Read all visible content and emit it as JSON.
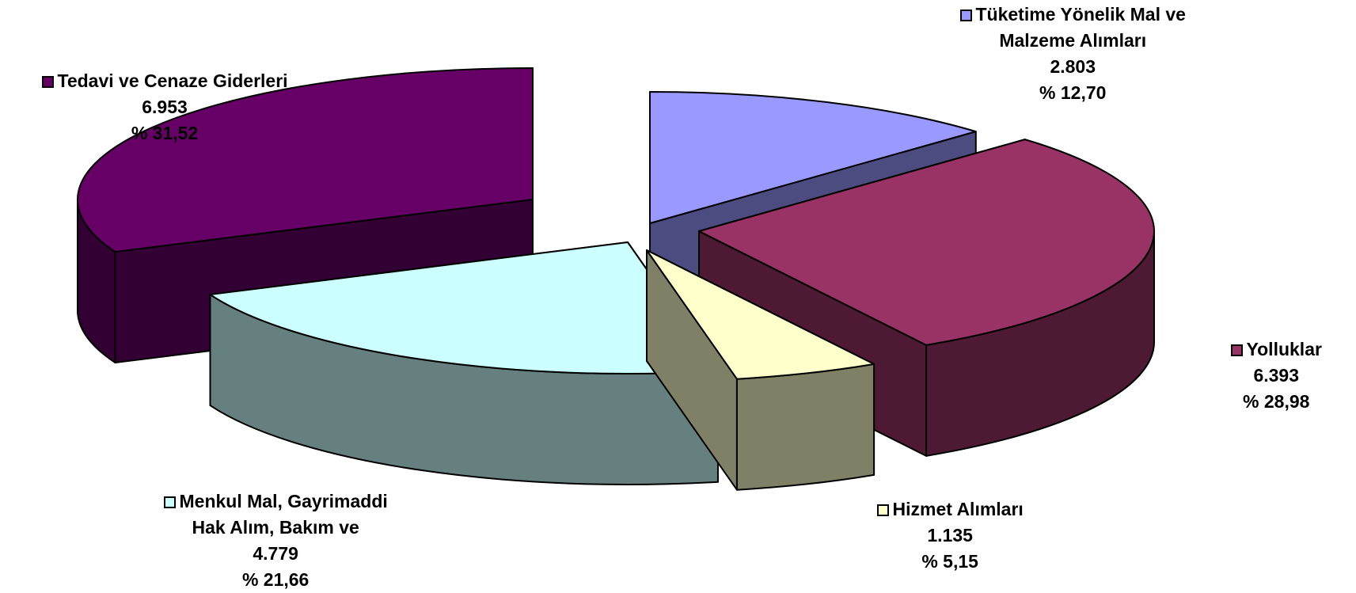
{
  "chart_data": {
    "type": "pie",
    "style": "3d-exploded",
    "slices": [
      {
        "key": "tuketim",
        "lines": [
          "Tüketime Yönelik Mal ve",
          "Malzeme Alımları"
        ],
        "value": 2803,
        "value_label": "2.803",
        "percent_label": "% 12,70",
        "color": "#9999FF",
        "side_color": "#4C4C80"
      },
      {
        "key": "yolluklar",
        "lines": [
          "Yolluklar"
        ],
        "value": 6393,
        "value_label": "6.393",
        "percent_label": "% 28,98",
        "color": "#993366",
        "side_color": "#4D1933"
      },
      {
        "key": "hizmet",
        "lines": [
          "Hizmet Alımları"
        ],
        "value": 1135,
        "value_label": "1.135",
        "percent_label": "% 5,15",
        "color": "#FFFFCC",
        "side_color": "#808066"
      },
      {
        "key": "menkul",
        "lines": [
          "Menkul Mal, Gayrimaddi",
          "Hak Alım, Bakım ve"
        ],
        "value": 4779,
        "value_label": "4.779",
        "percent_label": "% 21,66",
        "color": "#CCFFFF",
        "side_color": "#668080"
      },
      {
        "key": "tedavi",
        "lines": [
          "Tedavi ve Cenaze Giderleri"
        ],
        "value": 6953,
        "value_label": "6.953",
        "percent_label": "% 31,52",
        "color": "#660066",
        "side_color": "#330033"
      }
    ],
    "legend": "labels-beside-slices"
  }
}
